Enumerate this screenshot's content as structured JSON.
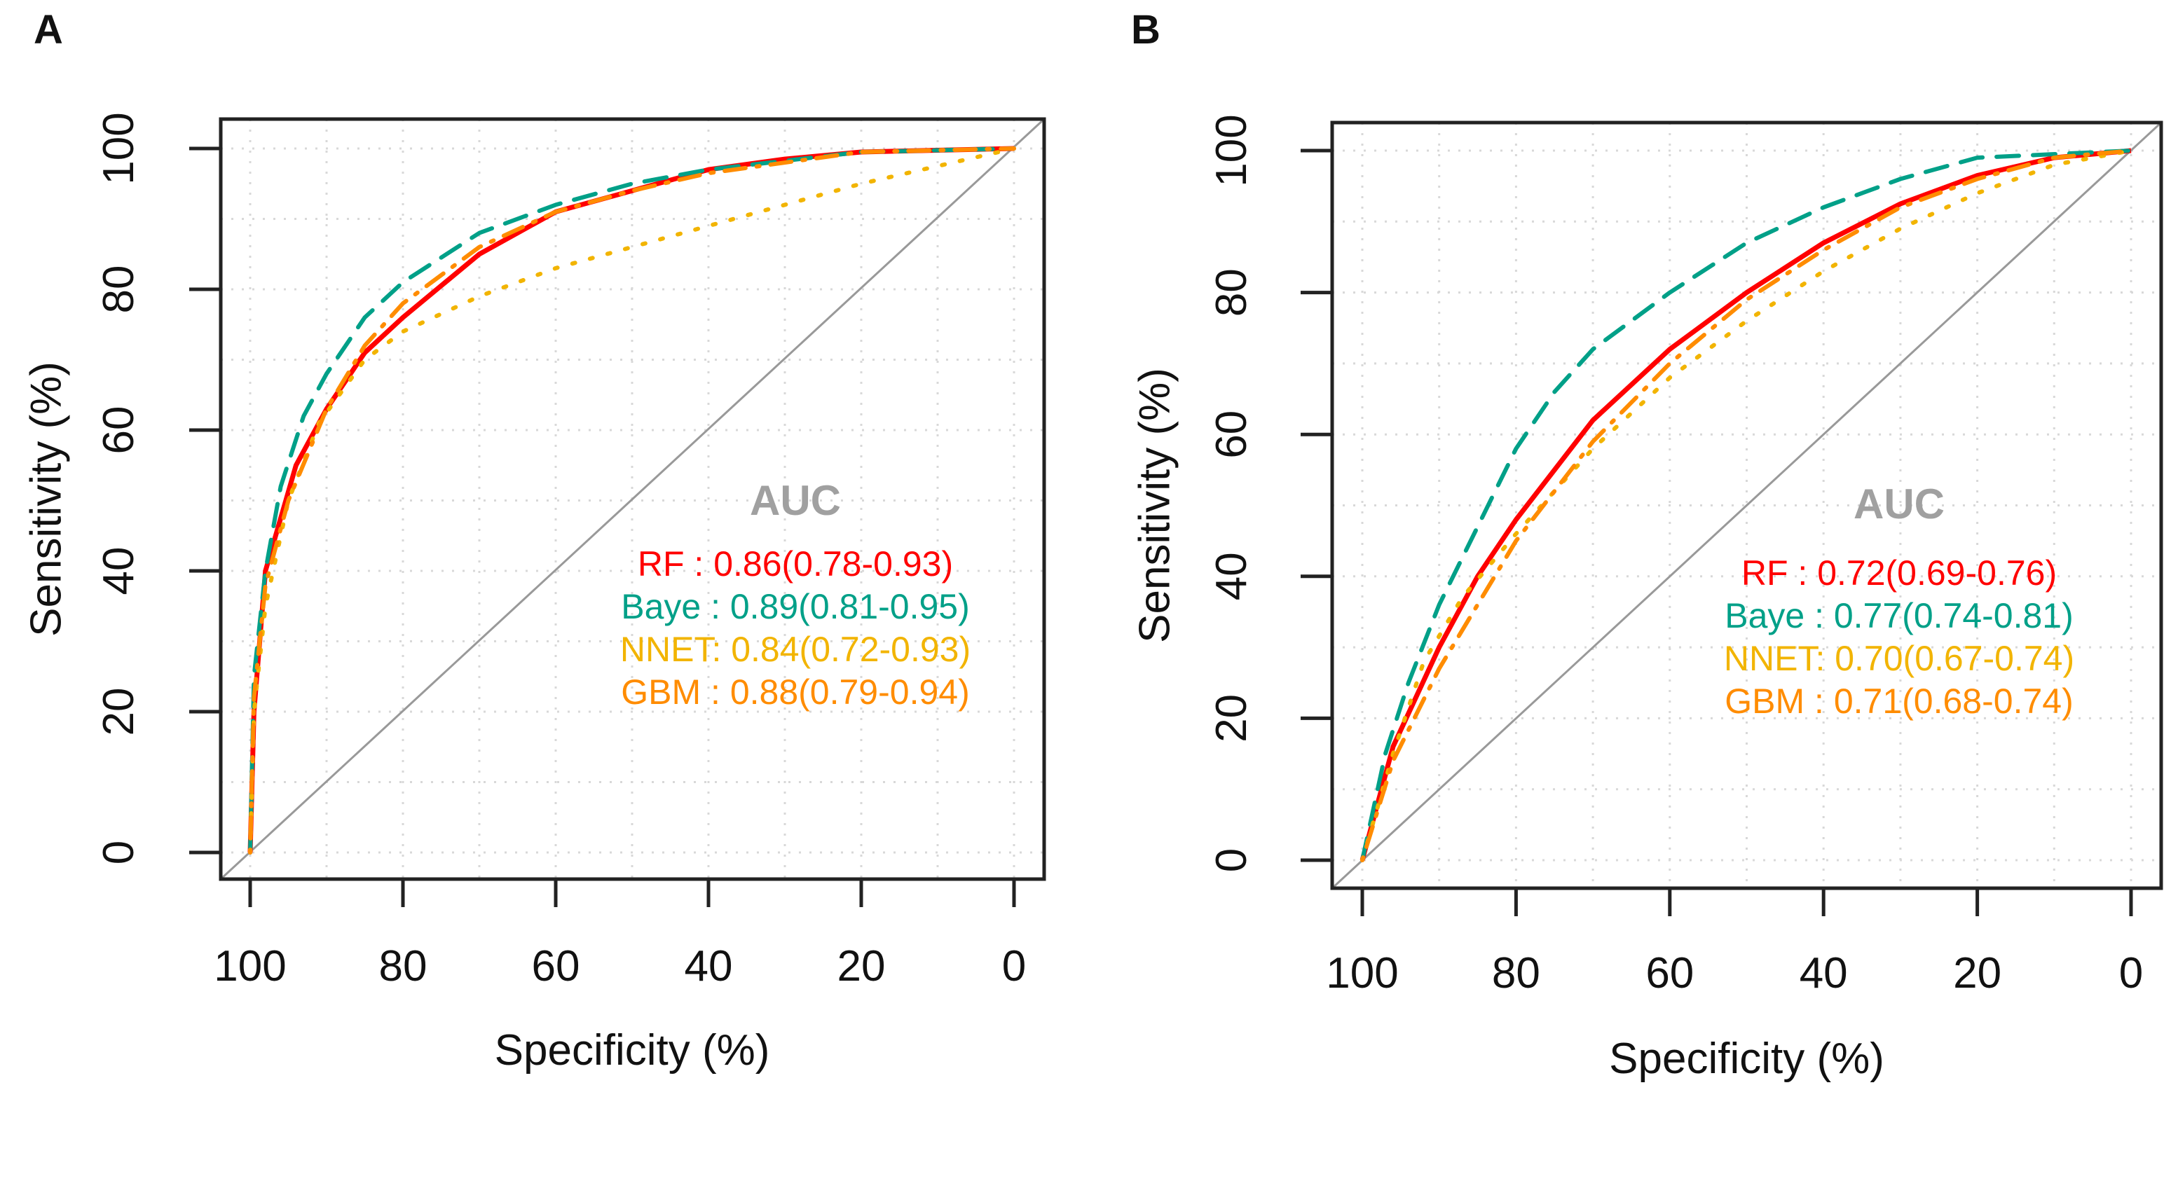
{
  "chart_data": [
    {
      "type": "line",
      "panel_label": "A",
      "xlabel": "Specificity (%)",
      "ylabel": "Sensitivity (%)",
      "xlim": [
        100,
        0
      ],
      "ylim": [
        0,
        100
      ],
      "xticks": [
        "100",
        "80",
        "60",
        "40",
        "20",
        "0"
      ],
      "yticks": [
        "0",
        "20",
        "40",
        "60",
        "80",
        "100"
      ],
      "grid": true,
      "legend_title": "AUC",
      "legend_placement": "bottom-right",
      "series": [
        {
          "name": "RF",
          "legend": "RF : 0.86(0.78-0.93)",
          "color": "#ff0000",
          "style": "solid",
          "x": [
            100,
            99.5,
            98,
            94,
            90,
            85,
            80,
            70,
            60,
            50,
            40,
            30,
            20,
            0
          ],
          "y": [
            0,
            20,
            40,
            55,
            63,
            71,
            76,
            85,
            91,
            94,
            97,
            98.5,
            99.5,
            100
          ]
        },
        {
          "name": "Baye",
          "legend": "Baye : 0.89(0.81-0.95)",
          "color": "#00a088",
          "style": "dashed",
          "x": [
            100,
            99.5,
            98,
            96,
            93,
            90,
            85,
            80,
            70,
            60,
            50,
            40,
            20,
            0
          ],
          "y": [
            0,
            25,
            40,
            52,
            62,
            68,
            76,
            81,
            88,
            92,
            95,
            97,
            99.5,
            100
          ]
        },
        {
          "name": "NNET",
          "legend": "NNET: 0.84(0.72-0.93)",
          "color": "#f2b400",
          "style": "dotted",
          "x": [
            100,
            99.5,
            98,
            95,
            91,
            85,
            80,
            70,
            60,
            50,
            40,
            30,
            20,
            10,
            0
          ],
          "y": [
            0,
            20,
            35,
            50,
            61,
            70,
            74,
            79,
            83,
            86,
            89,
            92,
            95,
            97.5,
            100
          ]
        },
        {
          "name": "GBM",
          "legend": "GBM : 0.88(0.79-0.94)",
          "color": "#ff8c00",
          "style": "dotdash",
          "x": [
            100,
            99.5,
            98,
            95,
            90,
            85,
            80,
            70,
            60,
            50,
            40,
            20,
            0
          ],
          "y": [
            0,
            22,
            38,
            50,
            63,
            72,
            78,
            86,
            91,
            94,
            96.5,
            99.5,
            100
          ]
        }
      ]
    },
    {
      "type": "line",
      "panel_label": "B",
      "xlabel": "Specificity (%)",
      "ylabel": "Sensitivity (%)",
      "xlim": [
        100,
        0
      ],
      "ylim": [
        0,
        100
      ],
      "xticks": [
        "100",
        "80",
        "60",
        "40",
        "20",
        "0"
      ],
      "yticks": [
        "0",
        "20",
        "40",
        "60",
        "80",
        "100"
      ],
      "grid": true,
      "legend_title": "AUC",
      "legend_placement": "bottom-right",
      "series": [
        {
          "name": "RF",
          "legend": "RF : 0.72(0.69-0.76)",
          "color": "#ff0000",
          "style": "solid",
          "x": [
            100,
            96,
            90,
            85,
            80,
            70,
            60,
            50,
            40,
            30,
            20,
            10,
            0
          ],
          "y": [
            0,
            16,
            30,
            40,
            48,
            62,
            72,
            80,
            87,
            92.5,
            96.5,
            99,
            100
          ]
        },
        {
          "name": "Baye",
          "legend": "Baye : 0.77(0.74-0.81)",
          "color": "#00a088",
          "style": "dashed",
          "x": [
            100,
            97,
            94,
            90,
            85,
            80,
            75,
            70,
            60,
            50,
            40,
            30,
            20,
            0
          ],
          "y": [
            0,
            15,
            25,
            36,
            47,
            58,
            66,
            72,
            80,
            87,
            92,
            96,
            99,
            100
          ]
        },
        {
          "name": "NNET",
          "legend": "NNET: 0.70(0.67-0.74)",
          "color": "#f2b400",
          "style": "dotted",
          "x": [
            100,
            96,
            92,
            87,
            80,
            70,
            60,
            50,
            40,
            30,
            20,
            10,
            0
          ],
          "y": [
            0,
            15,
            28,
            37,
            46,
            58,
            68,
            76,
            83,
            89,
            94,
            98,
            100
          ]
        },
        {
          "name": "GBM",
          "legend": "GBM : 0.71(0.68-0.74)",
          "color": "#ff8c00",
          "style": "dotdash",
          "x": [
            100,
            96,
            90,
            80,
            70,
            60,
            50,
            40,
            30,
            20,
            10,
            0
          ],
          "y": [
            0,
            14,
            27,
            45,
            59,
            70,
            79,
            86,
            92,
            96,
            99,
            100
          ]
        }
      ]
    }
  ]
}
